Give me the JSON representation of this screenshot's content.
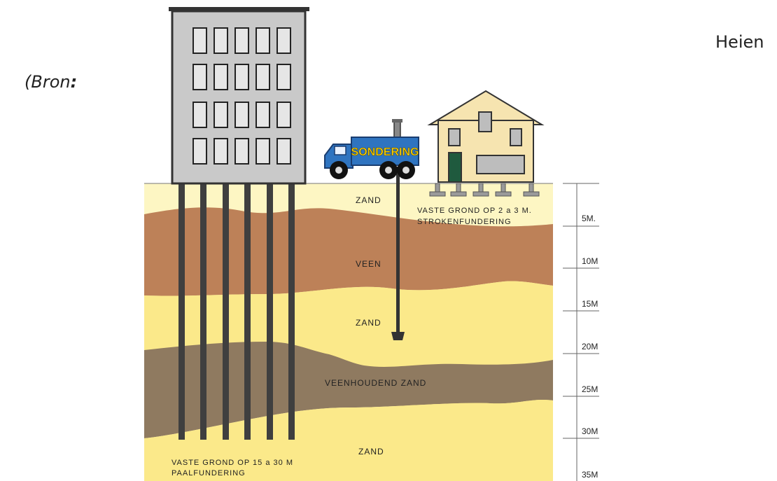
{
  "side_text": {
    "left": "(Bron",
    "left_bold": ":",
    "right": "Heien"
  },
  "truck": {
    "sign": "SONDERING"
  },
  "layers": {
    "top_sand": "ZAND",
    "peat": "VEEN",
    "mid_sand": "ZAND",
    "peaty_sand": "VEENHOUDEND ZAND",
    "bottom_sand": "ZAND"
  },
  "house_note": {
    "line1": "VASTE GROND OP 2 a 3 M.",
    "line2": "STROKENFUNDERING"
  },
  "building_note": {
    "line1": "VASTE GROND OP 15 a 30 M",
    "line2": "PAALFUNDERING"
  },
  "depth_scale": [
    "5M.",
    "10M",
    "15M",
    "20M",
    "25M",
    "30M",
    "35M"
  ],
  "colors": {
    "sand_light": "#fdf6c3",
    "sand": "#fbe98a",
    "peat": "#bd8158",
    "peaty_sand": "#8f7a60",
    "building": "#c9c9c9",
    "truck": "#2f74c0",
    "house": "#f6e4b0"
  }
}
